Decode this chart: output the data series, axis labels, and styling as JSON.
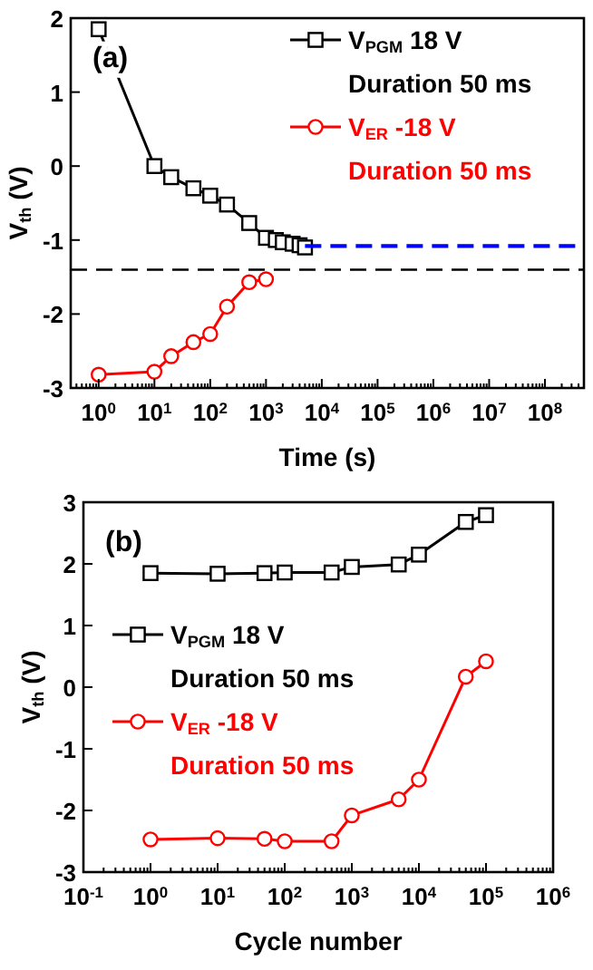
{
  "chart_data": [
    {
      "type": "line",
      "xlabel": "Time (s)",
      "ylabel": "V$_{th}$ (V)",
      "log": "x",
      "legend": "top right",
      "xlim": [
        0.316,
        500000000
      ],
      "xticks": [
        {
          "value": 1,
          "label": "10$^{0}$"
        },
        {
          "value": 10,
          "label": "10$^{1}$"
        },
        {
          "value": 100,
          "label": "10$^{2}$"
        },
        {
          "value": 1000,
          "label": "10$^{3}$"
        },
        {
          "value": 10000,
          "label": "10$^{4}$"
        },
        {
          "value": 100000,
          "label": "10$^{5}$"
        },
        {
          "value": 1000000,
          "label": "10$^{6}$"
        },
        {
          "value": 10000000,
          "label": "10$^{7}$"
        },
        {
          "value": 100000000,
          "label": "10$^{8}$"
        }
      ],
      "ylim": [
        -3,
        2
      ],
      "yticks": [
        -3,
        -2,
        -1,
        0,
        1,
        2
      ],
      "annotations": [
        "(a)"
      ],
      "ref_lines": [
        {
          "axis": "y",
          "value": -1.4,
          "color": "#000000",
          "line_style": "dashed"
        }
      ],
      "series": [
        {
          "name": "V$_{PGM}$ 18 V\nDuration 50 ms",
          "color": "#000000",
          "marker": "square",
          "x": [
            1,
            10,
            20,
            50,
            100,
            200,
            500,
            1000,
            1500,
            2000,
            3000,
            4000,
            5000
          ],
          "values": [
            1.85,
            0.0,
            -0.15,
            -0.3,
            -0.4,
            -0.52,
            -0.77,
            -0.97,
            -1.0,
            -1.03,
            -1.05,
            -1.07,
            -1.1
          ]
        },
        {
          "name": "V$_{ER}$ -18 V\nDuration 50 ms",
          "color": "#ff0000",
          "marker": "circle",
          "x": [
            1,
            10,
            20,
            50,
            100,
            200,
            500,
            1000
          ],
          "values": [
            -2.82,
            -2.78,
            -2.57,
            -2.38,
            -2.27,
            -1.9,
            -1.57,
            -1.53
          ]
        },
        {
          "color": "#0000ff",
          "marker": "none",
          "line_style": "dashed",
          "x": [
            5000,
            500000000
          ],
          "values": [
            -1.08,
            -1.08
          ]
        }
      ]
    },
    {
      "type": "line",
      "xlabel": "Cycle number",
      "ylabel": "V$_{th}$ (V)",
      "log": "x",
      "legend": "left",
      "xlim": [
        0.1,
        1000000
      ],
      "xticks": [
        {
          "value": 0.1,
          "label": "10$^{-1}$"
        },
        {
          "value": 1,
          "label": "10$^{0}$"
        },
        {
          "value": 10,
          "label": "10$^{1}$"
        },
        {
          "value": 100,
          "label": "10$^{2}$"
        },
        {
          "value": 1000,
          "label": "10$^{3}$"
        },
        {
          "value": 10000,
          "label": "10$^{4}$"
        },
        {
          "value": 100000,
          "label": "10$^{5}$"
        },
        {
          "value": 1000000,
          "label": "10$^{6}$"
        }
      ],
      "ylim": [
        -3,
        3
      ],
      "yticks": [
        -3,
        -2,
        -1,
        0,
        1,
        2,
        3
      ],
      "annotations": [
        "(b)"
      ],
      "series": [
        {
          "name": "V$_{PGM}$ 18 V\nDuration 50 ms",
          "color": "#000000",
          "marker": "square",
          "x": [
            1,
            10,
            50,
            100,
            500,
            1000,
            5000,
            10000,
            50000,
            100000
          ],
          "values": [
            1.85,
            1.84,
            1.85,
            1.86,
            1.86,
            1.95,
            1.99,
            2.15,
            2.68,
            2.79
          ]
        },
        {
          "name": "V$_{ER}$ -18 V\nDuration 50 ms",
          "color": "#ff0000",
          "marker": "circle",
          "x": [
            1,
            10,
            50,
            100,
            500,
            1000,
            5000,
            10000,
            50000,
            100000
          ],
          "values": [
            -2.47,
            -2.45,
            -2.46,
            -2.5,
            -2.5,
            -2.08,
            -1.82,
            -1.5,
            0.17,
            0.42
          ]
        }
      ]
    }
  ]
}
